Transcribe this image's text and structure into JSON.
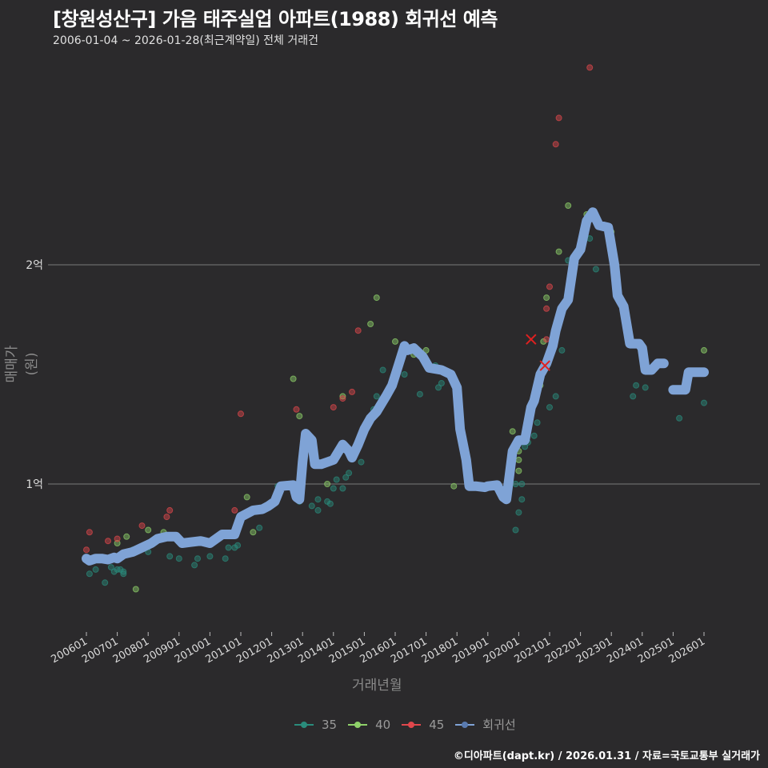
{
  "header": {
    "title": "[창원성산구] 가음 태주실업 아파트(1988) 회귀선 예측",
    "subtitle": "2006-01-04 ~ 2026-01-28(최근계약일) 전체 거래건"
  },
  "footer": "©디아파트(dapt.kr) / 2026.01.31 / 자료=국토교통부 실거래가",
  "colors": {
    "background": "#2b2a2c",
    "grid": "#7a7a7a",
    "s35": "#2a8c7c",
    "s40": "#8fd16a",
    "s45": "#e0474c",
    "regression": "#7fa3d6"
  },
  "legend": [
    {
      "label": "35",
      "color": "#2a8c7c"
    },
    {
      "label": "40",
      "color": "#8fd16a"
    },
    {
      "label": "45",
      "color": "#e0474c"
    },
    {
      "label": "회귀선",
      "color": "#7fa3d6"
    }
  ],
  "chart_data": {
    "type": "scatter+line",
    "title": "[창원성산구] 가음 태주실업 아파트(1988) 회귀선 예측",
    "subtitle": "2006-01-04 ~ 2026-01-28(최근계약일) 전체 거래건",
    "xlabel": "거래년월",
    "ylabel": "매매가(원)",
    "x_ticks": [
      "200601",
      "200701",
      "200801",
      "200901",
      "201001",
      "201101",
      "201201",
      "201301",
      "201401",
      "201501",
      "201601",
      "201701",
      "201801",
      "201901",
      "202001",
      "202101",
      "202201",
      "202301",
      "202401",
      "202501",
      "202601"
    ],
    "y_ticks": [
      {
        "value": 10000,
        "label": "1억"
      },
      {
        "value": 20000,
        "label": "2억"
      }
    ],
    "ylim": [
      6500,
      25500
    ],
    "unit": "만원",
    "grid": "horizontal",
    "legend_position": "bottom",
    "series": [
      {
        "name": "35",
        "color": "#2a8c7c",
        "points": [
          [
            2006.1,
            5900
          ],
          [
            2006.3,
            6100
          ],
          [
            2006.6,
            5500
          ],
          [
            2006.8,
            6200
          ],
          [
            2006.9,
            6000
          ],
          [
            2007.0,
            6100
          ],
          [
            2007.1,
            6100
          ],
          [
            2007.2,
            5900
          ],
          [
            2007.2,
            6000
          ],
          [
            2007.5,
            7000
          ],
          [
            2008.0,
            6900
          ],
          [
            2008.7,
            6700
          ],
          [
            2009.0,
            6600
          ],
          [
            2009.5,
            6300
          ],
          [
            2009.6,
            6600
          ],
          [
            2010.0,
            6700
          ],
          [
            2010.5,
            6600
          ],
          [
            2010.6,
            7100
          ],
          [
            2010.8,
            7100
          ],
          [
            2010.9,
            7200
          ],
          [
            2011.6,
            8000
          ],
          [
            2012.2,
            9900
          ],
          [
            2012.9,
            9200
          ],
          [
            2013.3,
            9000
          ],
          [
            2013.5,
            9300
          ],
          [
            2013.5,
            8800
          ],
          [
            2013.8,
            9200
          ],
          [
            2013.9,
            9100
          ],
          [
            2014.0,
            9800
          ],
          [
            2014.1,
            10200
          ],
          [
            2014.3,
            9800
          ],
          [
            2014.4,
            10300
          ],
          [
            2014.5,
            10500
          ],
          [
            2014.9,
            11000
          ],
          [
            2015.0,
            12400
          ],
          [
            2015.3,
            13400
          ],
          [
            2015.4,
            14000
          ],
          [
            2015.6,
            15200
          ],
          [
            2016.3,
            15000
          ],
          [
            2016.8,
            14100
          ],
          [
            2017.3,
            15400
          ],
          [
            2017.4,
            14400
          ],
          [
            2017.5,
            14600
          ],
          [
            2019.9,
            10000
          ],
          [
            2019.9,
            7900
          ],
          [
            2020.0,
            8700
          ],
          [
            2020.1,
            9300
          ],
          [
            2020.1,
            10000
          ],
          [
            2020.2,
            11700
          ],
          [
            2020.3,
            11900
          ],
          [
            2020.5,
            12200
          ],
          [
            2020.6,
            12800
          ],
          [
            2021.0,
            13500
          ],
          [
            2021.2,
            14000
          ],
          [
            2021.4,
            16100
          ],
          [
            2021.6,
            18400
          ],
          [
            2021.6,
            20200
          ],
          [
            2022.3,
            21200
          ],
          [
            2022.5,
            19800
          ],
          [
            2023.7,
            14000
          ],
          [
            2023.8,
            14500
          ],
          [
            2024.1,
            14400
          ],
          [
            2025.2,
            13000
          ],
          [
            2026.0,
            13700
          ]
        ]
      },
      {
        "name": "40",
        "color": "#8fd16a",
        "points": [
          [
            2007.0,
            7300
          ],
          [
            2007.3,
            7600
          ],
          [
            2007.6,
            5200
          ],
          [
            2008.0,
            7900
          ],
          [
            2008.5,
            7800
          ],
          [
            2009.4,
            7400
          ],
          [
            2011.2,
            9400
          ],
          [
            2011.4,
            7800
          ],
          [
            2012.7,
            14800
          ],
          [
            2012.9,
            13100
          ],
          [
            2013.8,
            10000
          ],
          [
            2014.3,
            14000
          ],
          [
            2015.2,
            17300
          ],
          [
            2015.4,
            18500
          ],
          [
            2016.0,
            16500
          ],
          [
            2016.6,
            15900
          ],
          [
            2017.0,
            16100
          ],
          [
            2017.9,
            9900
          ],
          [
            2019.8,
            12400
          ],
          [
            2020.0,
            11500
          ],
          [
            2020.0,
            11100
          ],
          [
            2020.0,
            10600
          ],
          [
            2020.7,
            14500
          ],
          [
            2020.8,
            16500
          ],
          [
            2020.9,
            18500
          ],
          [
            2021.3,
            20600
          ],
          [
            2021.6,
            22700
          ],
          [
            2022.2,
            22300
          ],
          [
            2023.0,
            21500
          ],
          [
            2026.0,
            16100
          ]
        ]
      },
      {
        "name": "45",
        "color": "#e0474c",
        "points": [
          [
            2006.0,
            7000
          ],
          [
            2006.1,
            7800
          ],
          [
            2006.7,
            7400
          ],
          [
            2007.0,
            7500
          ],
          [
            2007.8,
            8100
          ],
          [
            2008.6,
            8500
          ],
          [
            2008.7,
            8800
          ],
          [
            2010.8,
            8800
          ],
          [
            2011.0,
            13200
          ],
          [
            2012.8,
            13400
          ],
          [
            2014.0,
            13500
          ],
          [
            2014.3,
            13900
          ],
          [
            2014.6,
            14200
          ],
          [
            2014.8,
            17000
          ],
          [
            2020.6,
            14600
          ],
          [
            2020.9,
            16600
          ],
          [
            2020.9,
            18000
          ],
          [
            2021.0,
            19000
          ],
          [
            2021.2,
            25500
          ],
          [
            2021.3,
            26700
          ],
          [
            2022.3,
            29000
          ],
          [
            2020.8,
            15100
          ]
        ]
      },
      {
        "name": "회귀선",
        "color": "#7fa3d6",
        "points": [
          [
            2006.0,
            6600
          ],
          [
            2006.1,
            6500
          ],
          [
            2006.3,
            6600
          ],
          [
            2006.5,
            6600
          ],
          [
            2006.7,
            6550
          ],
          [
            2006.9,
            6650
          ],
          [
            2007.0,
            6600
          ],
          [
            2007.2,
            6800
          ],
          [
            2007.5,
            6900
          ],
          [
            2007.8,
            7100
          ],
          [
            2008.1,
            7300
          ],
          [
            2008.3,
            7500
          ],
          [
            2008.6,
            7600
          ],
          [
            2008.9,
            7600
          ],
          [
            2009.1,
            7300
          ],
          [
            2009.4,
            7350
          ],
          [
            2009.7,
            7400
          ],
          [
            2010.0,
            7300
          ],
          [
            2010.2,
            7500
          ],
          [
            2010.4,
            7700
          ],
          [
            2010.8,
            7700
          ],
          [
            2011.0,
            8500
          ],
          [
            2011.4,
            8800
          ],
          [
            2011.7,
            8850
          ],
          [
            2011.9,
            9000
          ],
          [
            2012.1,
            9200
          ],
          [
            2012.3,
            9900
          ],
          [
            2012.7,
            9950
          ],
          [
            2012.8,
            9400
          ],
          [
            2012.9,
            9300
          ],
          [
            2013.0,
            11000
          ],
          [
            2013.1,
            12300
          ],
          [
            2013.3,
            12000
          ],
          [
            2013.4,
            10900
          ],
          [
            2013.6,
            10900
          ],
          [
            2013.8,
            11000
          ],
          [
            2014.0,
            11100
          ],
          [
            2014.3,
            11800
          ],
          [
            2014.5,
            11500
          ],
          [
            2014.6,
            11200
          ],
          [
            2014.8,
            11800
          ],
          [
            2015.0,
            12500
          ],
          [
            2015.2,
            13000
          ],
          [
            2015.4,
            13300
          ],
          [
            2015.7,
            14000
          ],
          [
            2015.9,
            14500
          ],
          [
            2016.1,
            15400
          ],
          [
            2016.3,
            16300
          ],
          [
            2016.4,
            16100
          ],
          [
            2016.6,
            16200
          ],
          [
            2016.9,
            15800
          ],
          [
            2017.1,
            15300
          ],
          [
            2017.5,
            15200
          ],
          [
            2017.8,
            15000
          ],
          [
            2018.0,
            14400
          ],
          [
            2018.1,
            12500
          ],
          [
            2018.3,
            11100
          ],
          [
            2018.4,
            9900
          ],
          [
            2018.6,
            9900
          ],
          [
            2018.9,
            9850
          ],
          [
            2019.0,
            9900
          ],
          [
            2019.3,
            9950
          ],
          [
            2019.5,
            9400
          ],
          [
            2019.6,
            9300
          ],
          [
            2019.8,
            11500
          ],
          [
            2020.0,
            12000
          ],
          [
            2020.2,
            12000
          ],
          [
            2020.4,
            13500
          ],
          [
            2020.5,
            13800
          ],
          [
            2020.7,
            15000
          ],
          [
            2020.9,
            15500
          ],
          [
            2021.1,
            16300
          ],
          [
            2021.2,
            17000
          ],
          [
            2021.4,
            18000
          ],
          [
            2021.6,
            18400
          ],
          [
            2021.8,
            20300
          ],
          [
            2022.0,
            20700
          ],
          [
            2022.2,
            22000
          ],
          [
            2022.4,
            22400
          ],
          [
            2022.6,
            21800
          ],
          [
            2022.9,
            21700
          ],
          [
            2023.1,
            20000
          ],
          [
            2023.2,
            18600
          ],
          [
            2023.4,
            18100
          ],
          [
            2023.6,
            16400
          ],
          [
            2023.9,
            16400
          ],
          [
            2024.0,
            16200
          ],
          [
            2024.1,
            15200
          ],
          [
            2024.3,
            15200
          ],
          [
            2024.5,
            15500
          ],
          [
            2024.7,
            15500
          ]
        ]
      },
      {
        "name": "회귀선-segment2",
        "color": "#7fa3d6",
        "points": [
          [
            2025.0,
            14300
          ],
          [
            2025.4,
            14300
          ],
          [
            2025.5,
            15100
          ],
          [
            2026.0,
            15100
          ]
        ]
      }
    ]
  }
}
